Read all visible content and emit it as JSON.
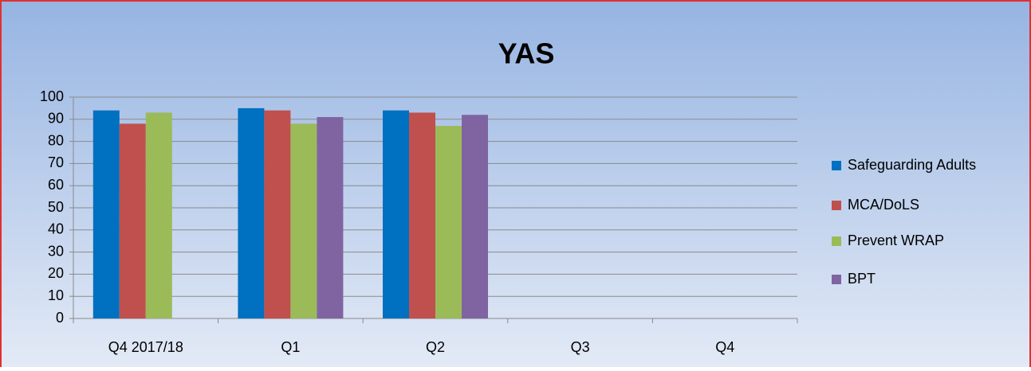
{
  "chart_data": {
    "type": "bar",
    "title": "YAS",
    "categories": [
      "Q4 2017/18",
      "Q1",
      "Q2",
      "Q3",
      "Q4"
    ],
    "series": [
      {
        "name": "Safeguarding Adults",
        "color": "#0070c0",
        "values": [
          94,
          95,
          94,
          null,
          null
        ]
      },
      {
        "name": "MCA/DoLS",
        "color": "#c0504d",
        "values": [
          88,
          94,
          93,
          null,
          null
        ]
      },
      {
        "name": "Prevent WRAP",
        "color": "#9bbb59",
        "values": [
          93,
          88,
          87,
          null,
          null
        ]
      },
      {
        "name": "BPT",
        "color": "#8064a2",
        "values": [
          null,
          91,
          92,
          null,
          null
        ]
      }
    ],
    "ylim": [
      0,
      100
    ],
    "yticks": [
      0,
      10,
      20,
      30,
      40,
      50,
      60,
      70,
      80,
      90,
      100
    ],
    "grid": true,
    "legend": "right"
  }
}
